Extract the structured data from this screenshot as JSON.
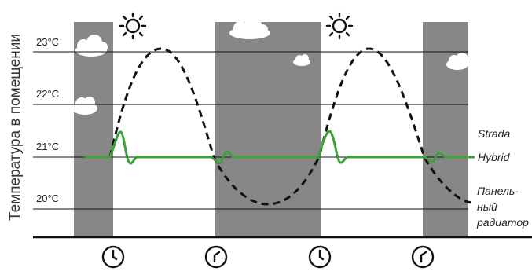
{
  "axis": {
    "ylabel": "Температура в помещении"
  },
  "series_labels": {
    "strada": "Strada",
    "hybrid": "Hybrid",
    "panel_line1": "Панель-",
    "panel_line2": "ный",
    "panel_line3": "радиатор"
  },
  "colors": {
    "hybrid": "#3aa335",
    "panel": "#111111",
    "night_band": "#878787",
    "grid": "#111111"
  },
  "icons": {
    "day": "sun-icon",
    "time": "clock-icon",
    "weather": "cloud-icon"
  },
  "chart_data": {
    "type": "line",
    "y_ticks": [
      "20°C",
      "21°C",
      "22°C",
      "23°C"
    ],
    "y_values": [
      20,
      21,
      22,
      23
    ],
    "ylim": [
      19.5,
      23.5
    ],
    "periods": [
      "night",
      "day",
      "night",
      "day",
      "night"
    ],
    "series": [
      {
        "name": "Panel radiator",
        "label_ref": "series_labels.panel_line1",
        "style": "dashed",
        "x": [
          0,
          1,
          2,
          3,
          4,
          5,
          6,
          7,
          8
        ],
        "values": [
          21.0,
          23.0,
          21.0,
          19.9,
          21.0,
          23.0,
          21.0,
          20.1,
          20.1
        ]
      },
      {
        "name": "Hybrid",
        "label_ref": "series_labels.hybrid",
        "style": "solid",
        "x": [
          0,
          1,
          2,
          3,
          4,
          5,
          6,
          7,
          8
        ],
        "values": [
          21.0,
          21.0,
          21.0,
          21.0,
          21.0,
          21.0,
          21.0,
          21.0,
          21.0
        ]
      }
    ]
  }
}
